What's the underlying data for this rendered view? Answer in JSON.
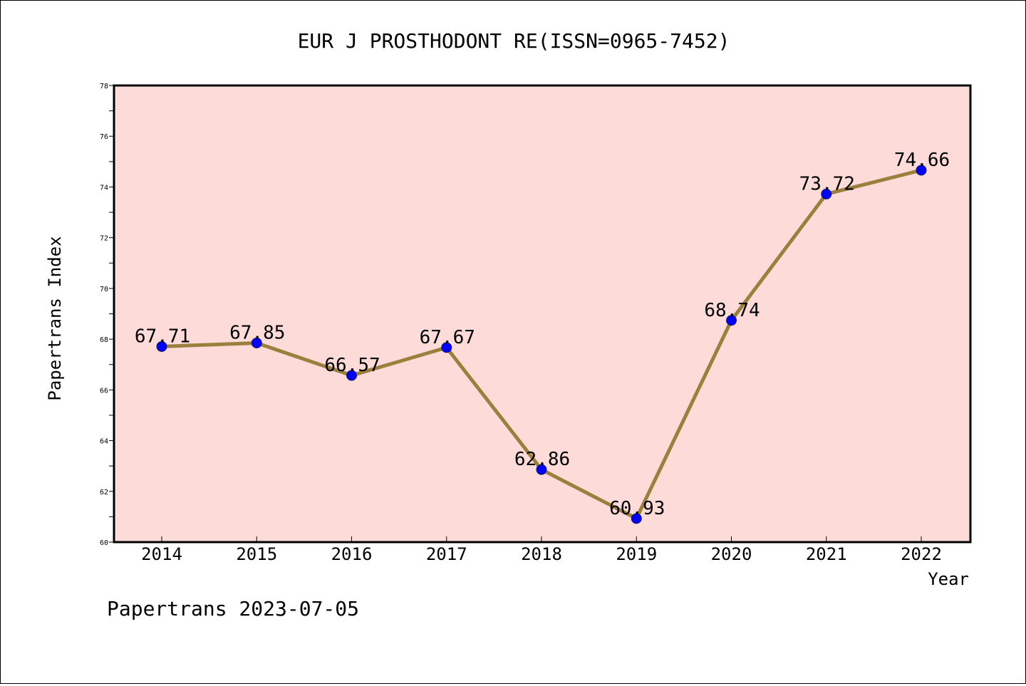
{
  "chart_data": {
    "type": "line",
    "title": "EUR J PROSTHODONT RE(ISSN=0965-7452)",
    "xlabel": "Year",
    "ylabel": "Papertrans Index",
    "categories": [
      "2014",
      "2015",
      "2016",
      "2017",
      "2018",
      "2019",
      "2020",
      "2021",
      "2022"
    ],
    "series": [
      {
        "values": [
          67.71,
          67.85,
          66.57,
          67.67,
          62.86,
          60.93,
          68.74,
          73.72,
          74.66
        ],
        "labels": [
          "67.71",
          "67.85",
          "66.57",
          "67.67",
          "62.86",
          "60.93",
          "68.74",
          "73.72",
          "74.66"
        ]
      }
    ],
    "ylim": [
      60,
      78
    ],
    "yticks": [
      "60",
      "62",
      "64",
      "66",
      "68",
      "70",
      "72",
      "74",
      "76",
      "78"
    ],
    "grid": false,
    "colors": {
      "plot_background": "#fddbd8",
      "line": "#9b7f3c",
      "marker": "#0000ff"
    }
  },
  "footer": {
    "text": "Papertrans 2023-07-05"
  }
}
